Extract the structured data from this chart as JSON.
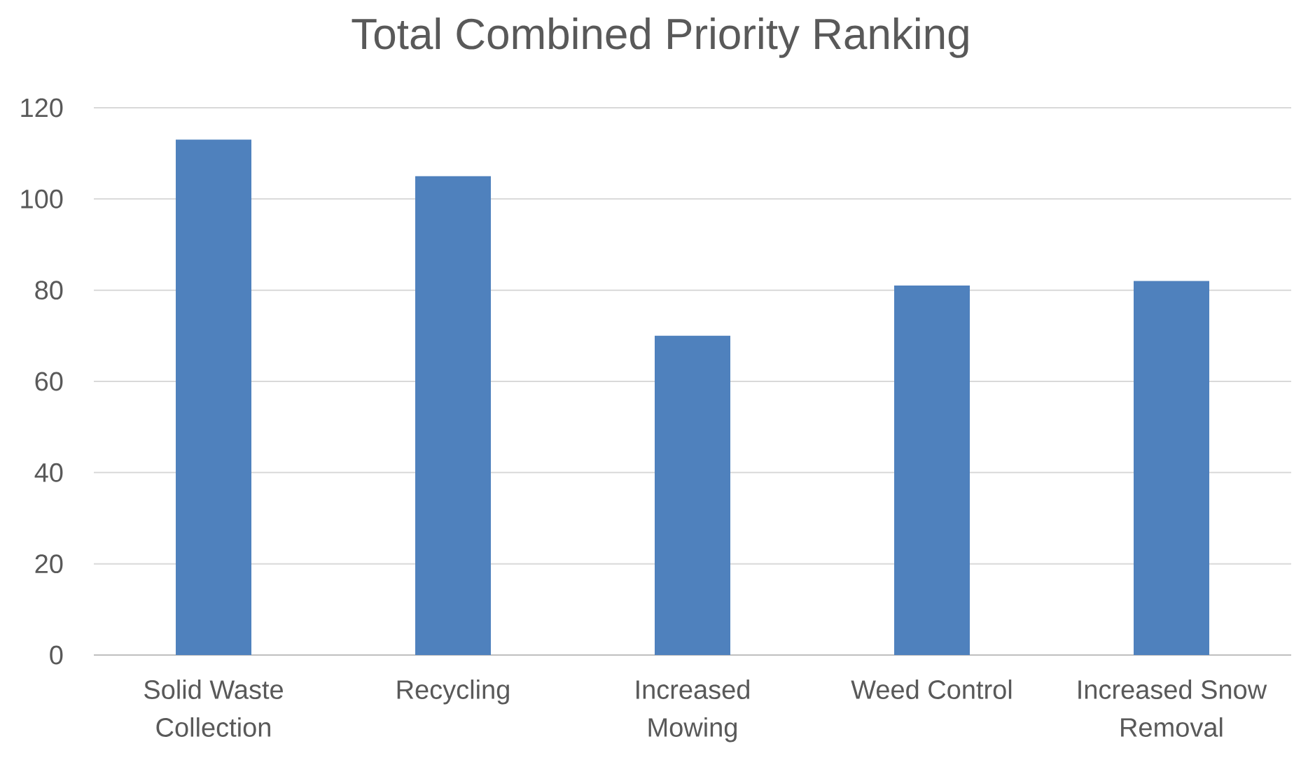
{
  "chart_data": {
    "type": "bar",
    "title": "Total Combined Priority Ranking",
    "categories": [
      "Solid Waste Collection",
      "Recycling",
      "Increased Mowing",
      "Weed Control",
      "Increased Snow Removal"
    ],
    "values": [
      113,
      105,
      70,
      81,
      82
    ],
    "color": "#4f81bd",
    "ylim": [
      0,
      120
    ],
    "yticks": [
      0,
      20,
      40,
      60,
      80,
      100,
      120
    ],
    "grid": "y"
  }
}
